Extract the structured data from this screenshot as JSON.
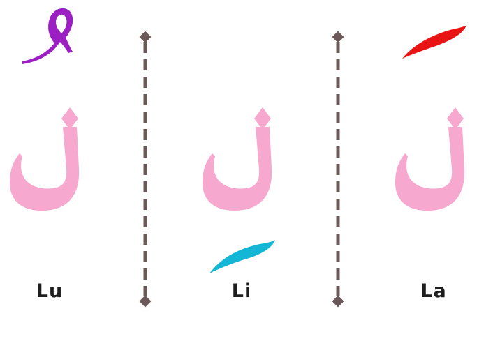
{
  "panels": [
    {
      "id": "lu",
      "letter": "ل",
      "harakat": "dammah",
      "label": "Lu",
      "harakat_color": "#9b1fc2"
    },
    {
      "id": "li",
      "letter": "ل",
      "harakat": "kasrah",
      "label": "Li",
      "harakat_color": "#13b6d4"
    },
    {
      "id": "la",
      "letter": "ل",
      "harakat": "fathah",
      "label": "La",
      "harakat_color": "#e81414"
    }
  ],
  "colors": {
    "letter": "#f7a8cf",
    "divider": "#6b5959",
    "label_text": "#1e1e1e",
    "background": "#ffffff"
  }
}
